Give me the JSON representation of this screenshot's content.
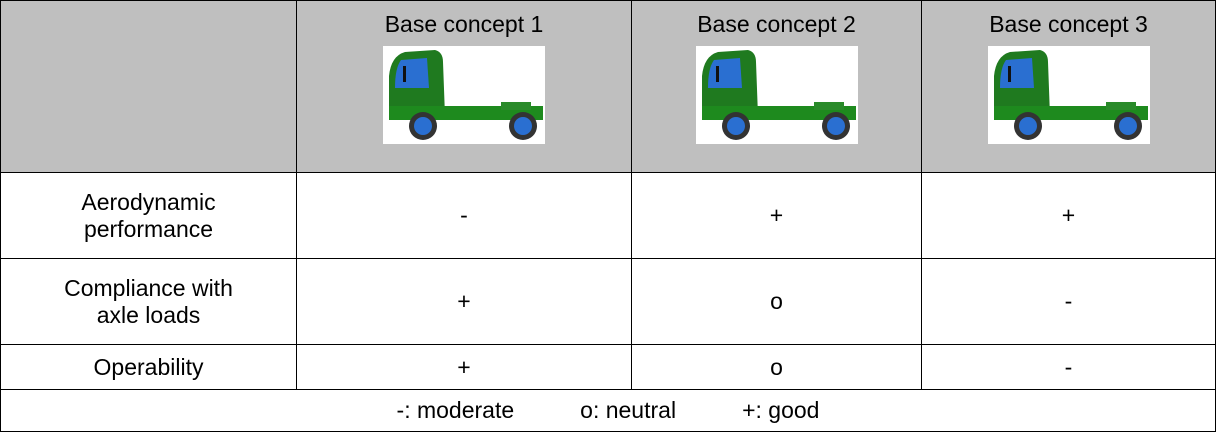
{
  "header": {
    "columns": [
      "Base concept 1",
      "Base concept 2",
      "Base concept 3"
    ]
  },
  "rows": [
    {
      "label": "Aerodynamic performance",
      "cells": [
        "-",
        "+",
        "+"
      ]
    },
    {
      "label": "Compliance with axle loads",
      "cells": [
        "+",
        "o",
        "-"
      ]
    },
    {
      "label": "Operability",
      "cells": [
        "+",
        "o",
        "-"
      ]
    }
  ],
  "legend": [
    "-: moderate",
    "o: neutral",
    "+: good"
  ]
}
